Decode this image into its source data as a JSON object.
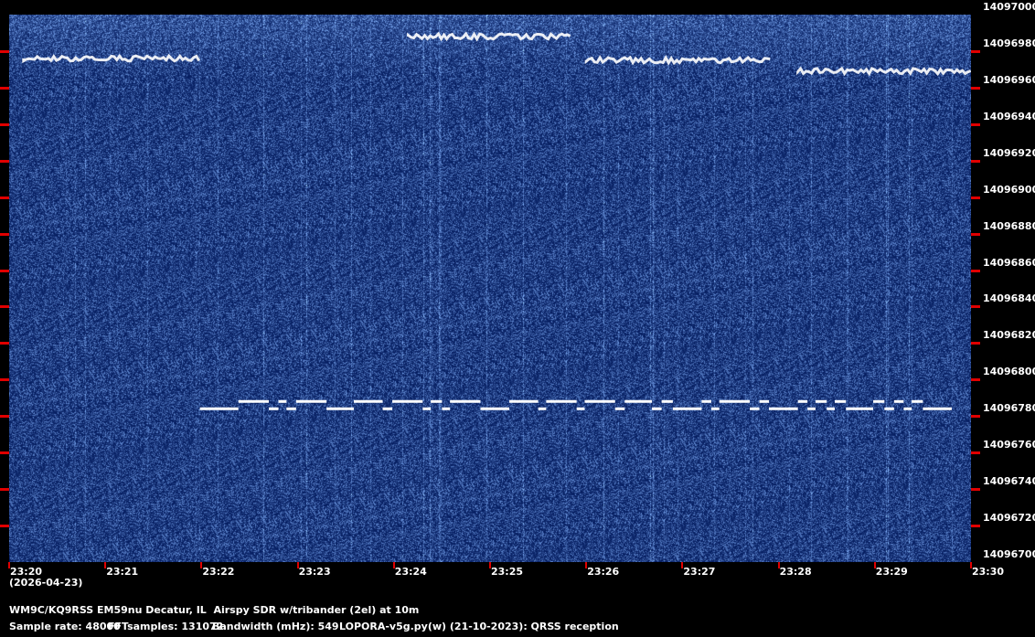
{
  "chart_data": {
    "type": "heatmap",
    "subtype": "spectrogram-waterfall",
    "xlabel": "",
    "ylabel": "",
    "x_ticks": [
      "23:20",
      "23:21",
      "23:22",
      "23:23",
      "23:24",
      "23:25",
      "23:26",
      "23:27",
      "23:28",
      "23:29",
      "23:30"
    ],
    "x_date_label": "(2026-04-23)",
    "xlim": [
      "23:20:00",
      "23:30:00"
    ],
    "y_ticks": [
      14097000,
      14096980,
      14096960,
      14096940,
      14096920,
      14096900,
      14096880,
      14096860,
      14096840,
      14096820,
      14096800,
      14096780,
      14096760,
      14096740,
      14096720,
      14096700
    ],
    "ylim": [
      14096700,
      14097000
    ],
    "grid": false,
    "colors": {
      "background": "#06206a",
      "signal": "#ffffff",
      "tick": "#e00000",
      "label": "#ffffff"
    },
    "fsk_trace": {
      "end": "23:29:48",
      "high_hz": 14096788,
      "low_hz": 14096784,
      "steps": [
        [
          "23:21:59",
          "low"
        ],
        [
          "23:22:23",
          "high"
        ],
        [
          "23:22:42",
          "low"
        ],
        [
          "23:22:48",
          "high"
        ],
        [
          "23:22:53",
          "low"
        ],
        [
          "23:22:59",
          "high"
        ],
        [
          "23:23:18",
          "low"
        ],
        [
          "23:23:35",
          "high"
        ],
        [
          "23:23:53",
          "low"
        ],
        [
          "23:23:59",
          "high"
        ],
        [
          "23:24:18",
          "low"
        ],
        [
          "23:24:23",
          "high"
        ],
        [
          "23:24:30",
          "low"
        ],
        [
          "23:24:35",
          "high"
        ],
        [
          "23:24:54",
          "low"
        ],
        [
          "23:25:12",
          "high"
        ],
        [
          "23:25:30",
          "low"
        ],
        [
          "23:25:35",
          "high"
        ],
        [
          "23:25:54",
          "low"
        ],
        [
          "23:25:59",
          "high"
        ],
        [
          "23:26:18",
          "low"
        ],
        [
          "23:26:24",
          "high"
        ],
        [
          "23:26:41",
          "low"
        ],
        [
          "23:26:47",
          "high"
        ],
        [
          "23:26:54",
          "low"
        ],
        [
          "23:27:12",
          "high"
        ],
        [
          "23:27:18",
          "low"
        ],
        [
          "23:27:23",
          "high"
        ],
        [
          "23:27:42",
          "low"
        ],
        [
          "23:27:48",
          "high"
        ],
        [
          "23:27:54",
          "low"
        ],
        [
          "23:28:12",
          "high"
        ],
        [
          "23:28:18",
          "low"
        ],
        [
          "23:28:23",
          "high"
        ],
        [
          "23:28:30",
          "low"
        ],
        [
          "23:28:35",
          "high"
        ],
        [
          "23:28:42",
          "low"
        ],
        [
          "23:28:59",
          "high"
        ],
        [
          "23:29:06",
          "low"
        ],
        [
          "23:29:12",
          "high"
        ],
        [
          "23:29:18",
          "low"
        ],
        [
          "23:29:23",
          "high"
        ],
        [
          "23:29:30",
          "low"
        ]
      ]
    },
    "other_signals": [
      {
        "start": "23:20:09",
        "end": "23:22:00",
        "hz": 14096976
      },
      {
        "start": "23:24:09",
        "end": "23:25:50",
        "hz": 14096988
      },
      {
        "start": "23:26:00",
        "end": "23:27:55",
        "hz": 14096975
      },
      {
        "start": "23:28:12",
        "end": "23:30:00",
        "hz": 14096969
      }
    ]
  },
  "footer": {
    "station": "WM9C/KQ9RSS EM59nu Decatur, IL  Airspy SDR w/tribander (2el) at 10m",
    "sample_rate": "Sample rate: 48000",
    "fft_samples": "FFTsamples: 131072",
    "bandwidth": "Bandwidth (mHz): 549",
    "software": "LOPORA-v5g.py(w) (21-10-2023): QRSS reception"
  }
}
